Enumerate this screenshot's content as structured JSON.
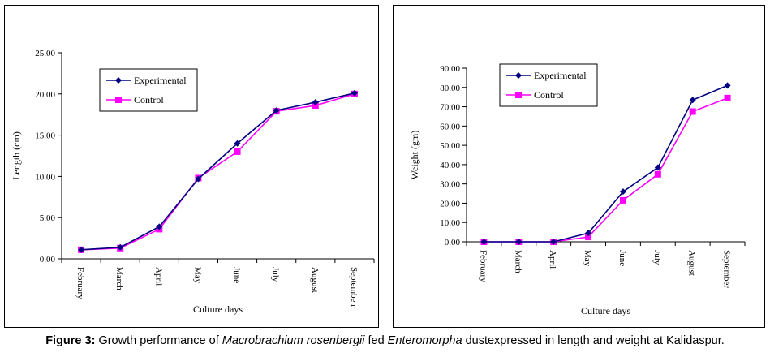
{
  "chart_data": [
    {
      "type": "line",
      "title": "",
      "xlabel": "Culture days",
      "ylabel": "Length (cm)",
      "ylim": [
        0,
        25
      ],
      "yticks": [
        "0.00",
        "5.00",
        "10.00",
        "15.00",
        "20.00",
        "25.00"
      ],
      "categories": [
        "February",
        "March",
        "April",
        "May",
        "June",
        "July",
        "August",
        "Septembe r"
      ],
      "legend_position": "top-left",
      "grid": false,
      "series": [
        {
          "name": "Experimental",
          "color": "#000080",
          "marker": "diamond",
          "values": [
            1.1,
            1.4,
            3.9,
            9.7,
            14.0,
            18.0,
            19.0,
            20.1
          ]
        },
        {
          "name": "Control",
          "color": "#ff00ff",
          "marker": "square",
          "values": [
            1.1,
            1.3,
            3.6,
            9.8,
            13.0,
            17.9,
            18.6,
            20.0
          ]
        }
      ]
    },
    {
      "type": "line",
      "title": "",
      "xlabel": "Culture days",
      "ylabel": "Weight (gm)",
      "ylim": [
        0,
        90
      ],
      "yticks": [
        "0.00",
        "10.00",
        "20.00",
        "30.00",
        "40.00",
        "50.00",
        "60.00",
        "70.00",
        "80.00",
        "90.00"
      ],
      "categories": [
        "February",
        "March",
        "April",
        "May",
        "June",
        "July",
        "August",
        "September"
      ],
      "legend_position": "top-left",
      "grid": false,
      "series": [
        {
          "name": "Experimental",
          "color": "#000080",
          "marker": "diamond",
          "values": [
            0.0,
            0.0,
            0.0,
            4.5,
            26.0,
            38.5,
            73.5,
            81.0
          ]
        },
        {
          "name": "Control",
          "color": "#ff00ff",
          "marker": "square",
          "values": [
            0.0,
            0.0,
            0.0,
            2.5,
            21.5,
            35.0,
            67.5,
            74.5
          ]
        }
      ]
    }
  ],
  "caption": {
    "label": "Figure 3:",
    "text_1": " Growth performance of ",
    "species": "Macrobrachium rosenbergii",
    "text_2": " fed ",
    "feed": "Enteromorpha",
    "text_3": " dustexpressed in length and weight at Kalidaspur."
  }
}
